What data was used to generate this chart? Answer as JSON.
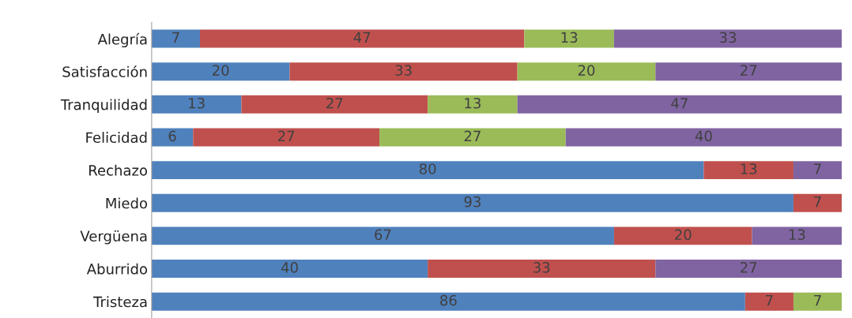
{
  "chart_data": {
    "type": "bar",
    "orientation": "horizontal",
    "stacked": true,
    "data_labels": true,
    "grid": false,
    "legend": false,
    "categories": [
      "Alegría",
      "Satisfacción",
      "Tranquilidad",
      "Felicidad",
      "Rechazo",
      "Miedo",
      "Vergüena",
      "Aburrido",
      "Tristeza"
    ],
    "series": [
      {
        "color": "#4f81bd",
        "values": [
          7,
          20,
          13,
          6,
          80,
          93,
          67,
          40,
          86
        ]
      },
      {
        "color": "#c0504d",
        "values": [
          47,
          33,
          27,
          27,
          13,
          7,
          20,
          33,
          7
        ]
      },
      {
        "color": "#9bbb59",
        "values": [
          13,
          20,
          13,
          27,
          null,
          null,
          null,
          null,
          7
        ]
      },
      {
        "color": "#8064a2",
        "values": [
          33,
          27,
          47,
          40,
          7,
          null,
          13,
          27,
          null
        ]
      }
    ]
  }
}
